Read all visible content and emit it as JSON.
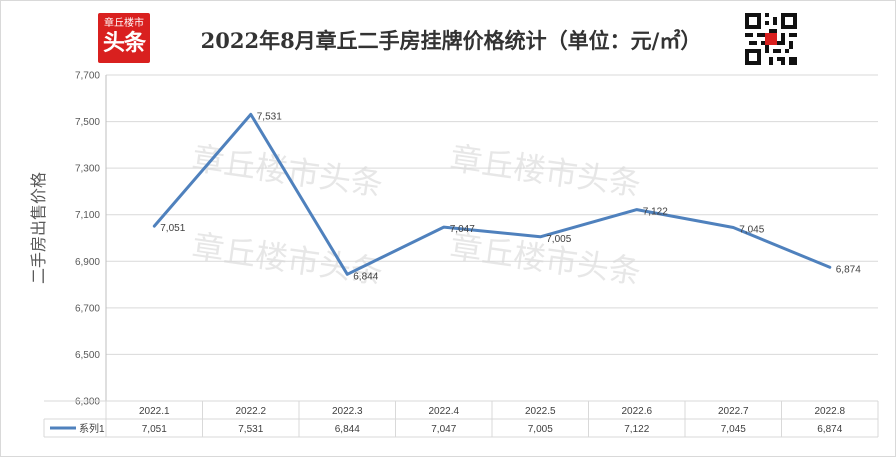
{
  "header": {
    "title": "2022年8月章丘二手房挂牌价格统计（单位：元/㎡）",
    "logo_small": "章丘楼市",
    "logo_big": "头条"
  },
  "watermark": "章丘楼市头条",
  "colors": {
    "line": "#4f81bd",
    "logo": "#d9201f",
    "grid": "#d9d9d9"
  },
  "chart_data": {
    "type": "line",
    "title": "2022年8月章丘二手房挂牌价格统计（单位：元/㎡）",
    "ylabel": "二手房出售价格",
    "xlabel": "",
    "categories": [
      "2022.1",
      "2022.2",
      "2022.3",
      "2022.4",
      "2022.5",
      "2022.6",
      "2022.7",
      "2022.8"
    ],
    "series": [
      {
        "name": "系列1",
        "values": [
          7051,
          7531,
          6844,
          7047,
          7005,
          7122,
          7045,
          6874
        ],
        "labels": [
          "7,051",
          "7,531",
          "6,844",
          "7,047",
          "7,005",
          "7,122",
          "7,045",
          "6,874"
        ]
      }
    ],
    "ylim": [
      6300,
      7700
    ],
    "yticks": [
      6300,
      6500,
      6700,
      6900,
      7100,
      7300,
      7500,
      7700
    ],
    "ytick_labels": [
      "6,300",
      "6,500",
      "6,700",
      "6,900",
      "7,100",
      "7,300",
      "7,500",
      "7,700"
    ],
    "grid": true,
    "legend": "data-table"
  }
}
